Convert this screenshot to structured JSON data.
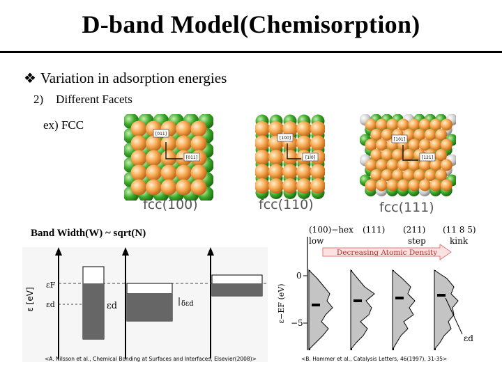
{
  "slide": {
    "title": "D-band Model(Chemisorption)",
    "bullet": "Variation in adsorption energies",
    "sub_num": "2)",
    "sub_text": "Different Facets",
    "example": "ex) FCC"
  },
  "facets": [
    {
      "label": "fcc(100)",
      "dir_a": "[011]",
      "dir_b": "[011]"
    },
    {
      "label": "fcc(110)",
      "dir_a": "[100]",
      "dir_b": "[1Ī0]"
    },
    {
      "label": "fcc(111)",
      "dir_a": "[101]",
      "dir_b": "[121]"
    }
  ],
  "band_width": "Band Width(W) ~ sqrt(N)",
  "left_diagram": {
    "y_label": "ε [eV]",
    "fermi_label": "εF",
    "d_label": "εd",
    "d_label_mid": "εd",
    "delta_label": "δεd",
    "citation": "<A. Nilsson et al., Chemical Bonding at Surfaces and Interfaces, Elsevier(2008)>"
  },
  "right_chart": {
    "columns": [
      {
        "top": "(100)−hex",
        "bottom": "low"
      },
      {
        "top": "(111)",
        "bottom": ""
      },
      {
        "top": "(211)",
        "bottom": "step"
      },
      {
        "top": "(11 8 5)",
        "bottom": "kink"
      }
    ],
    "arrow_label": "Decreasing Atomic Density",
    "y_label": "ε−EF (eV)",
    "y_ticks": [
      "0",
      "−5"
    ],
    "ed_label": "εd",
    "citation": "<B. Hammer et al., Catalysis Letters, 46(1997), 31-35>"
  }
}
